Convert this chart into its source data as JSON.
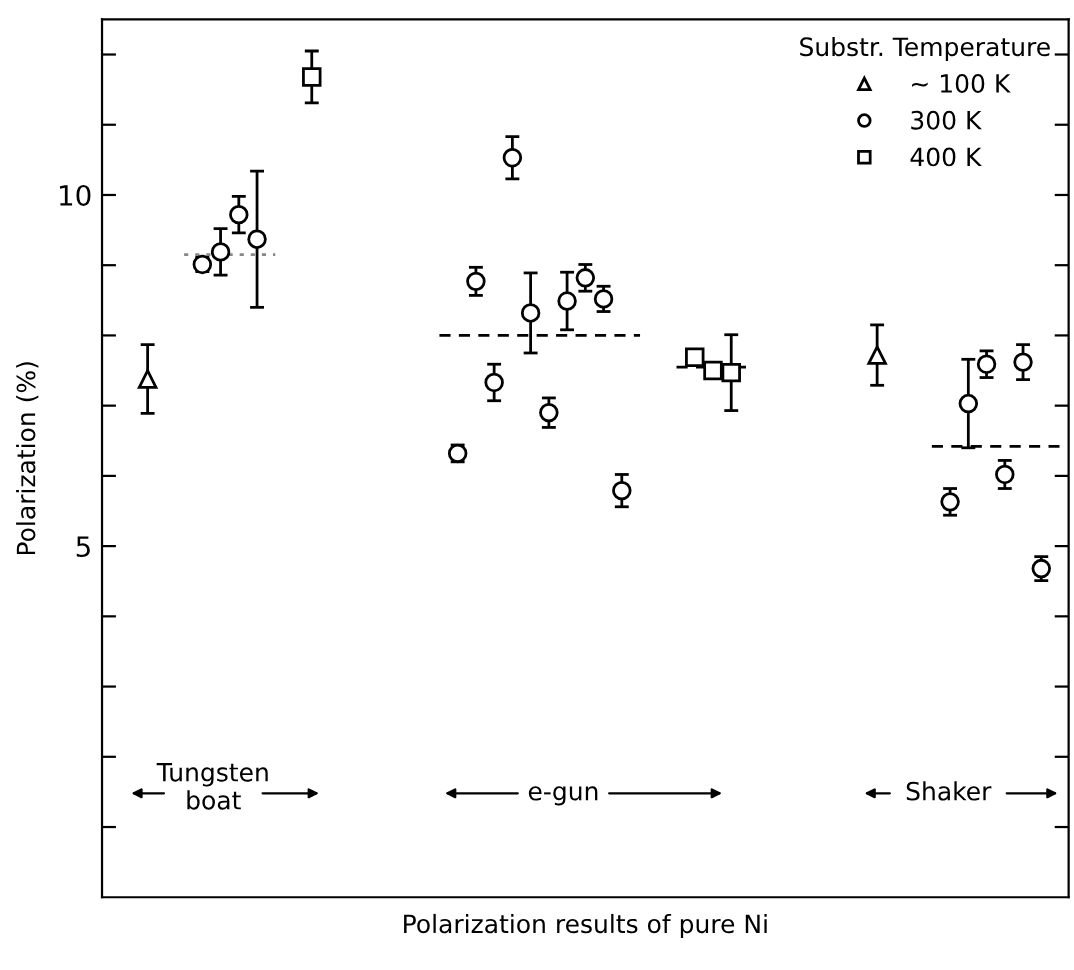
{
  "chart_data": {
    "type": "scatter",
    "xlabel": "Polarization results of pure Ni",
    "ylabel": "Polarization (%)",
    "legend_title": "Substr. Temperature",
    "legend": "top right",
    "tick_labels": "y",
    "grid": false,
    "categories": [
      null,
      null,
      null,
      null,
      null,
      null,
      null,
      null,
      null,
      null,
      null,
      null,
      null,
      null,
      null,
      null,
      null,
      null,
      null,
      null,
      null,
      null,
      null,
      null,
      null,
      null,
      null,
      null,
      null,
      null,
      null,
      null,
      null,
      null,
      null,
      null,
      null,
      null,
      null,
      null,
      null,
      null,
      null,
      null,
      null,
      null,
      null,
      null,
      null,
      null,
      null,
      null,
      null
    ],
    "ylim": [
      0,
      12.5
    ],
    "yticks": [
      {
        "value": 1,
        "label": null
      },
      {
        "value": 2,
        "label": null
      },
      {
        "value": 3,
        "label": null
      },
      {
        "value": 4,
        "label": null
      },
      5,
      {
        "value": 6,
        "label": null
      },
      {
        "value": 7,
        "label": null
      },
      {
        "value": 8,
        "label": null
      },
      {
        "value": 9,
        "label": null
      },
      10,
      {
        "value": 11,
        "label": null
      },
      {
        "value": 12,
        "label": null
      }
    ],
    "series": [
      {
        "name": "~ 100 K",
        "type": "scatter",
        "marker": "triangle",
        "color": "#000000",
        "values": [
          null,
          null,
          7.38,
          null,
          null,
          null,
          null,
          null,
          null,
          null,
          null,
          null,
          null,
          null,
          null,
          null,
          null,
          null,
          null,
          null,
          null,
          null,
          null,
          null,
          null,
          null,
          null,
          null,
          null,
          null,
          null,
          null,
          null,
          null,
          null,
          null,
          null,
          null,
          null,
          null,
          null,
          null,
          7.72,
          null,
          null,
          null,
          null,
          null,
          null,
          null,
          null,
          null,
          null
        ],
        "errors": [
          null,
          null,
          0.49,
          null,
          null,
          null,
          null,
          null,
          null,
          null,
          null,
          null,
          null,
          null,
          null,
          null,
          null,
          null,
          null,
          null,
          null,
          null,
          null,
          null,
          null,
          null,
          null,
          null,
          null,
          null,
          null,
          null,
          null,
          null,
          null,
          null,
          null,
          null,
          null,
          null,
          null,
          null,
          0.43,
          null,
          null,
          null,
          null,
          null,
          null,
          null,
          null,
          null,
          null
        ]
      },
      {
        "name": "300 K",
        "type": "scatter",
        "marker": "circle",
        "color": "#000000",
        "values": [
          null,
          null,
          null,
          null,
          null,
          9.01,
          9.19,
          9.72,
          9.37,
          null,
          null,
          null,
          null,
          null,
          null,
          null,
          null,
          null,
          null,
          6.32,
          8.77,
          7.33,
          10.53,
          8.32,
          6.9,
          8.49,
          8.82,
          8.52,
          5.79,
          null,
          null,
          null,
          null,
          null,
          null,
          null,
          null,
          null,
          null,
          null,
          null,
          null,
          null,
          null,
          null,
          null,
          5.63,
          7.03,
          7.59,
          6.02,
          7.62,
          4.68,
          null
        ],
        "errors": [
          null,
          null,
          null,
          null,
          null,
          0.1,
          0.33,
          0.26,
          0.97,
          null,
          null,
          null,
          null,
          null,
          null,
          null,
          null,
          null,
          null,
          0.12,
          0.2,
          0.26,
          0.3,
          0.57,
          0.21,
          0.41,
          0.19,
          0.18,
          0.23,
          null,
          null,
          null,
          null,
          null,
          null,
          null,
          null,
          null,
          null,
          null,
          null,
          null,
          null,
          null,
          null,
          null,
          0.19,
          0.63,
          0.19,
          0.2,
          0.25,
          0.17,
          null
        ]
      },
      {
        "name": "400 K",
        "type": "scatter",
        "marker": "square",
        "color": "#000000",
        "values": [
          null,
          null,
          null,
          null,
          null,
          null,
          null,
          null,
          null,
          null,
          null,
          11.68,
          null,
          null,
          null,
          null,
          null,
          null,
          null,
          null,
          null,
          null,
          null,
          null,
          null,
          null,
          null,
          null,
          null,
          null,
          null,
          null,
          7.69,
          7.5,
          7.47,
          null,
          null,
          null,
          null,
          null,
          null,
          null,
          null,
          null,
          null,
          null,
          null,
          null,
          null,
          null,
          null,
          null,
          null
        ],
        "errors": [
          null,
          null,
          null,
          null,
          null,
          null,
          null,
          null,
          null,
          null,
          null,
          0.37,
          null,
          null,
          null,
          null,
          null,
          null,
          null,
          null,
          null,
          null,
          null,
          null,
          null,
          null,
          null,
          null,
          null,
          null,
          null,
          null,
          0.1,
          0.1,
          0.54,
          null,
          null,
          null,
          null,
          null,
          null,
          null,
          null,
          null,
          null,
          null,
          null,
          null,
          null,
          null,
          null,
          null,
          null
        ]
      },
      {
        "type": "line",
        "line_style": "dotted",
        "marker": "none",
        "color": "#888888",
        "values": [
          null,
          null,
          null,
          null,
          9.15,
          9.15,
          9.15,
          9.15,
          9.15,
          9.15,
          null,
          null,
          null,
          null,
          null,
          null,
          null,
          null,
          null,
          null,
          null,
          null,
          null,
          null,
          null,
          null,
          null,
          null,
          null,
          null,
          null,
          null,
          null,
          null,
          null,
          null,
          null,
          null,
          null,
          null,
          null,
          null,
          null,
          null,
          null,
          null,
          null,
          null,
          null,
          null,
          null,
          null,
          null
        ]
      },
      {
        "type": "line",
        "line_style": "dashed",
        "marker": "none",
        "color": "#000000",
        "values": [
          null,
          null,
          null,
          null,
          null,
          null,
          null,
          null,
          null,
          null,
          null,
          null,
          null,
          null,
          null,
          null,
          null,
          null,
          8.0,
          8.0,
          8.0,
          8.0,
          8.0,
          8.0,
          8.0,
          8.0,
          8.0,
          8.0,
          8.0,
          8.0,
          null,
          null,
          null,
          null,
          null,
          null,
          null,
          null,
          null,
          null,
          null,
          null,
          null,
          null,
          null,
          null,
          null,
          null,
          null,
          null,
          null,
          null,
          null
        ]
      },
      {
        "type": "line",
        "line_style": "dashed",
        "marker": "none",
        "color": "#000000",
        "values": [
          null,
          null,
          null,
          null,
          null,
          null,
          null,
          null,
          null,
          null,
          null,
          null,
          null,
          null,
          null,
          null,
          null,
          null,
          null,
          null,
          null,
          null,
          null,
          null,
          null,
          null,
          null,
          null,
          null,
          null,
          null,
          7.55,
          7.55,
          7.55,
          7.55,
          7.55,
          null,
          null,
          null,
          null,
          null,
          null,
          null,
          null,
          null,
          null,
          null,
          null,
          null,
          null,
          null,
          null,
          null
        ]
      },
      {
        "type": "line",
        "line_style": "dashed",
        "marker": "none",
        "color": "#000000",
        "values": [
          null,
          null,
          null,
          null,
          null,
          null,
          null,
          null,
          null,
          null,
          null,
          null,
          null,
          null,
          null,
          null,
          null,
          null,
          null,
          null,
          null,
          null,
          null,
          null,
          null,
          null,
          null,
          null,
          null,
          null,
          null,
          null,
          null,
          null,
          null,
          null,
          null,
          null,
          null,
          null,
          null,
          null,
          null,
          null,
          null,
          6.42,
          6.42,
          6.42,
          6.42,
          6.42,
          6.42,
          6.42,
          6.42
        ]
      }
    ],
    "annotations": [
      "Tungsten\nboat",
      "e-gun",
      "Shaker"
    ]
  }
}
